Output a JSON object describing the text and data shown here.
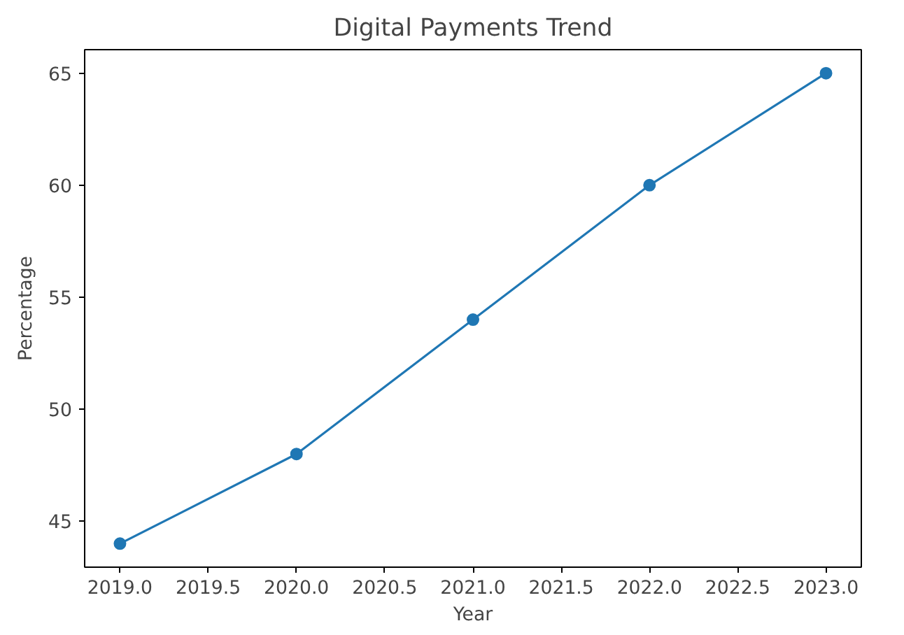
{
  "chart_data": {
    "type": "line",
    "title": "Digital Payments Trend",
    "xlabel": "Year",
    "ylabel": "Percentage",
    "x": [
      2019,
      2020,
      2021,
      2022,
      2023
    ],
    "series": [
      {
        "color": "#1f77b4",
        "values": [
          44,
          48,
          54,
          60,
          65
        ]
      }
    ],
    "marker": "circle",
    "line_style": "solid",
    "grid": false,
    "xlim": [
      2018.8,
      2023.2
    ],
    "ylim": [
      42.95,
      66.05
    ],
    "xticks": [
      {
        "value": 2019,
        "label": "2019.0"
      },
      {
        "value": 2019.5,
        "label": "2019.5"
      },
      {
        "value": 2020,
        "label": "2020.0"
      },
      {
        "value": 2020.5,
        "label": "2020.5"
      },
      {
        "value": 2021,
        "label": "2021.0"
      },
      {
        "value": 2021.5,
        "label": "2021.5"
      },
      {
        "value": 2022,
        "label": "2022.0"
      },
      {
        "value": 2022.5,
        "label": "2022.5"
      },
      {
        "value": 2023,
        "label": "2023.0"
      }
    ],
    "yticks": [
      45,
      50,
      55,
      60,
      65
    ]
  }
}
